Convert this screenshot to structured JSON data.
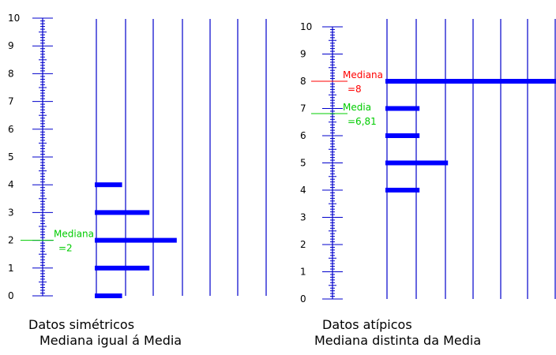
{
  "colors": {
    "axis": "#0000cc",
    "bar": "#0000ff",
    "median": "#ff0000",
    "mean": "#00cc00",
    "text": "#000000"
  },
  "chart_data": [
    {
      "type": "bar",
      "orientation": "horizontal",
      "ylim": [
        0,
        10
      ],
      "ytick_labels": [
        "0",
        "1",
        "2",
        "3",
        "4",
        "5",
        "6",
        "7",
        "8",
        "9",
        "10"
      ],
      "categories": [
        "0",
        "1",
        "2",
        "3",
        "4"
      ],
      "values": [
        2,
        4,
        6,
        4,
        2
      ],
      "grid": true,
      "caption": [
        "Datos simétricos",
        "Mediana igual á Media"
      ],
      "annotations": [
        {
          "kind": "median_and_mean",
          "lines": [
            "Mediana",
            "=2"
          ],
          "value": 2,
          "color": "#00cc00"
        }
      ]
    },
    {
      "type": "bar",
      "orientation": "horizontal",
      "ylim": [
        0,
        10
      ],
      "ytick_labels": [
        "0",
        "1",
        "2",
        "3",
        "4",
        "5",
        "6",
        "7",
        "8",
        "9",
        "10"
      ],
      "categories": [
        "4",
        "5",
        "6",
        "7",
        "8"
      ],
      "values": [
        1.2,
        2.2,
        1.2,
        1.2,
        6
      ],
      "grid": true,
      "caption": [
        "Datos atípicos",
        "Mediana distinta da Media"
      ],
      "annotations": [
        {
          "kind": "median",
          "lines": [
            "Mediana",
            "=8"
          ],
          "value": 8,
          "color": "#ff0000"
        },
        {
          "kind": "mean",
          "lines": [
            "Media",
            "=6,81"
          ],
          "value": 6.81,
          "color": "#00cc00"
        }
      ]
    }
  ]
}
